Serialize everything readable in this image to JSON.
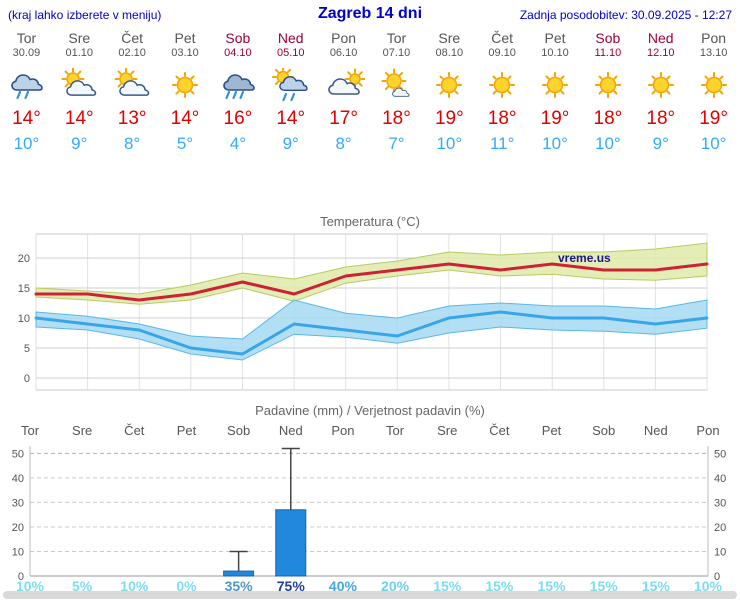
{
  "header": {
    "menu_note": "(kraj lahko izberete v meniju)",
    "title": "Zagreb 14 dni",
    "last_update": "Zadnja posodobitev: 30.09.2025 - 12:27"
  },
  "colors": {
    "header_text": "#0000cc",
    "weekday_text": "#555555",
    "weekend_text": "#a00033",
    "temp_max_text": "#e00000",
    "temp_min_text": "#33aaff"
  },
  "days": [
    {
      "name": "Tor",
      "date": "30.09",
      "weekend": false,
      "icon": "cloud-rain",
      "tmax": "14°",
      "tmin": "10°"
    },
    {
      "name": "Sre",
      "date": "01.10",
      "weekend": false,
      "icon": "partly-cloudy",
      "tmax": "14°",
      "tmin": "9°"
    },
    {
      "name": "Čet",
      "date": "02.10",
      "weekend": false,
      "icon": "partly-cloudy",
      "tmax": "13°",
      "tmin": "8°"
    },
    {
      "name": "Pet",
      "date": "03.10",
      "weekend": false,
      "icon": "sunny",
      "tmax": "14°",
      "tmin": "5°"
    },
    {
      "name": "Sob",
      "date": "04.10",
      "weekend": true,
      "icon": "rain",
      "tmax": "16°",
      "tmin": "4°"
    },
    {
      "name": "Ned",
      "date": "05.10",
      "weekend": true,
      "icon": "sun-rain",
      "tmax": "14°",
      "tmin": "9°"
    },
    {
      "name": "Pon",
      "date": "06.10",
      "weekend": false,
      "icon": "mostly-cloudy",
      "tmax": "17°",
      "tmin": "8°"
    },
    {
      "name": "Tor",
      "date": "07.10",
      "weekend": false,
      "icon": "mostly-sunny",
      "tmax": "18°",
      "tmin": "7°"
    },
    {
      "name": "Sre",
      "date": "08.10",
      "weekend": false,
      "icon": "sunny",
      "tmax": "19°",
      "tmin": "10°"
    },
    {
      "name": "Čet",
      "date": "09.10",
      "weekend": false,
      "icon": "sunny",
      "tmax": "18°",
      "tmin": "11°"
    },
    {
      "name": "Pet",
      "date": "10.10",
      "weekend": false,
      "icon": "sunny",
      "tmax": "19°",
      "tmin": "10°"
    },
    {
      "name": "Sob",
      "date": "11.10",
      "weekend": true,
      "icon": "sunny",
      "tmax": "18°",
      "tmin": "10°"
    },
    {
      "name": "Ned",
      "date": "12.10",
      "weekend": true,
      "icon": "sunny",
      "tmax": "18°",
      "tmin": "9°"
    },
    {
      "name": "Pon",
      "date": "13.10",
      "weekend": false,
      "icon": "sunny",
      "tmax": "19°",
      "tmin": "10°"
    }
  ],
  "chart_data": [
    {
      "type": "line",
      "title": "Temperatura (°C)",
      "watermark": "vreme.us",
      "x_labels": [
        "Tor",
        "Sre",
        "Čet",
        "Pet",
        "Sob",
        "Ned",
        "Pon",
        "Tor",
        "Sre",
        "Čet",
        "Pet",
        "Sob",
        "Ned",
        "Pon"
      ],
      "ylim": [
        -2,
        24
      ],
      "yticks": [
        0,
        5,
        10,
        15,
        20
      ],
      "grid": true,
      "series": [
        {
          "name": "max-temp",
          "color": "#cc2233",
          "values": [
            14,
            14,
            13,
            14,
            16,
            14,
            17,
            18,
            19,
            18,
            19,
            18,
            18,
            19
          ]
        },
        {
          "name": "min-temp",
          "color": "#38a5e8",
          "values": [
            10,
            9,
            8,
            5,
            4,
            9,
            8,
            7,
            10,
            11,
            10,
            10,
            9,
            10
          ]
        }
      ],
      "bands": [
        {
          "name": "max-temp-range",
          "color": "#dfeaa8",
          "edge": "#b5cc62",
          "upper": [
            15,
            14.5,
            14,
            15.5,
            17.5,
            16.5,
            18.5,
            19.5,
            21,
            20.5,
            21,
            21,
            21.5,
            22.5
          ],
          "lower": [
            13.5,
            13,
            12.3,
            13,
            15,
            12.8,
            15.8,
            17,
            18,
            17,
            17.3,
            16.5,
            16.3,
            17
          ]
        },
        {
          "name": "min-temp-range",
          "color": "#a6d9f2",
          "edge": "#58b8e8",
          "upper": [
            11,
            10.3,
            9,
            7,
            6.5,
            13,
            10.8,
            10,
            12,
            12.5,
            12,
            12,
            11.5,
            13
          ],
          "lower": [
            8.5,
            8,
            6.5,
            4,
            3,
            7.3,
            6.8,
            5.8,
            7.5,
            8.5,
            8,
            7.8,
            7.3,
            8.3
          ]
        }
      ]
    },
    {
      "type": "bar",
      "title": "Padavine (mm) / Verjetnost padavin (%)",
      "categories": [
        "Tor",
        "Sre",
        "Čet",
        "Pet",
        "Sob",
        "Ned",
        "Pon",
        "Tor",
        "Sre",
        "Čet",
        "Pet",
        "Sob",
        "Ned",
        "Pon"
      ],
      "weekend": [
        false,
        false,
        false,
        false,
        true,
        true,
        false,
        false,
        false,
        false,
        false,
        true,
        true,
        false
      ],
      "values": [
        0,
        0,
        0,
        0,
        2,
        27,
        0,
        0,
        0,
        0,
        0,
        0,
        0,
        0
      ],
      "whisker_max": [
        0,
        0,
        0,
        0,
        10,
        52,
        0,
        0,
        0,
        0,
        0,
        0,
        0,
        0
      ],
      "ylim": [
        0,
        53
      ],
      "yticks": [
        0,
        10,
        20,
        30,
        40,
        50
      ],
      "bar_color": "#2288dd",
      "top_gridline_color": "#f09898",
      "probabilities": [
        {
          "label": "10%",
          "color": "#7ddcf0"
        },
        {
          "label": "5%",
          "color": "#7ddcf0"
        },
        {
          "label": "10%",
          "color": "#7ddcf0"
        },
        {
          "label": "0%",
          "color": "#7ddcf0"
        },
        {
          "label": "35%",
          "color": "#4d94c8"
        },
        {
          "label": "75%",
          "color": "#20409a"
        },
        {
          "label": "40%",
          "color": "#46a8d8"
        },
        {
          "label": "20%",
          "color": "#6fd0ea"
        },
        {
          "label": "15%",
          "color": "#7ddcf0"
        },
        {
          "label": "15%",
          "color": "#7ddcf0"
        },
        {
          "label": "15%",
          "color": "#7ddcf0"
        },
        {
          "label": "15%",
          "color": "#7ddcf0"
        },
        {
          "label": "15%",
          "color": "#7ddcf0"
        },
        {
          "label": "10%",
          "color": "#7ddcf0"
        }
      ]
    }
  ]
}
